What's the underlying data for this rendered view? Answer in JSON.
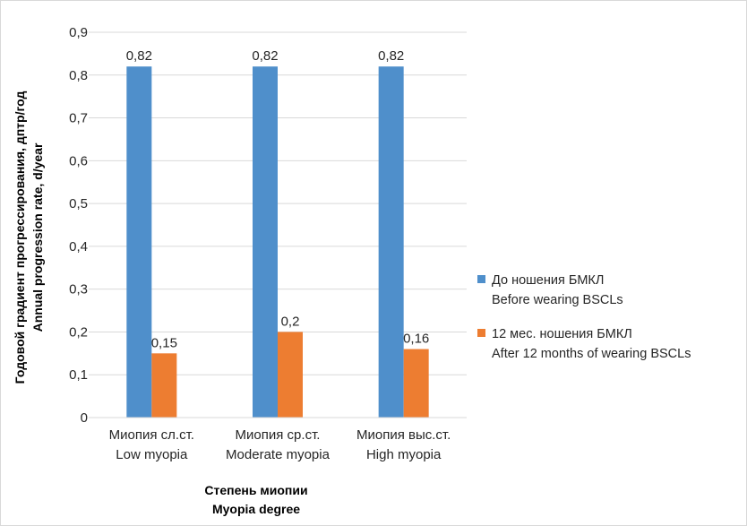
{
  "chart_data": {
    "type": "bar",
    "title": "",
    "categories": [
      {
        "line1": "Миопия сл.ст.",
        "line2": "Low myopia"
      },
      {
        "line1": "Миопия ср.ст.",
        "line2": "Moderate myopia"
      },
      {
        "line1": "Миопия выс.ст.",
        "line2": "High myopia"
      }
    ],
    "series": [
      {
        "name_line1": "До ношения БМКЛ",
        "name_line2": "Before wearing BSCLs",
        "color": "#4f8fcb",
        "values": [
          0.82,
          0.82,
          0.82
        ],
        "value_labels": [
          "0,82",
          "0,82",
          "0,82"
        ]
      },
      {
        "name_line1": "12 мес. ношения БМКЛ",
        "name_line2": "After 12 months of wearing BSCLs",
        "color": "#ed7d31",
        "values": [
          0.15,
          0.2,
          0.16
        ],
        "value_labels": [
          "0,15",
          "0,2",
          "0,16"
        ]
      }
    ],
    "ylim": [
      0,
      0.9
    ],
    "yticks": [
      0,
      0.1,
      0.2,
      0.3,
      0.4,
      0.5,
      0.6,
      0.7,
      0.8,
      0.9
    ],
    "ytick_labels": [
      "0",
      "0,1",
      "0,2",
      "0,3",
      "0,4",
      "0,5",
      "0,6",
      "0,7",
      "0,8",
      "0,9"
    ],
    "xlabel_line1": "Степень миопии",
    "xlabel_line2": "Myopia degree",
    "ylabel_line1": "Годовой градиент прогрессирования, дптр/год",
    "ylabel_line2": "Annual progression rate, d/year",
    "grid": true,
    "legend_position": "right",
    "grid_color": "#d9d9d9"
  }
}
